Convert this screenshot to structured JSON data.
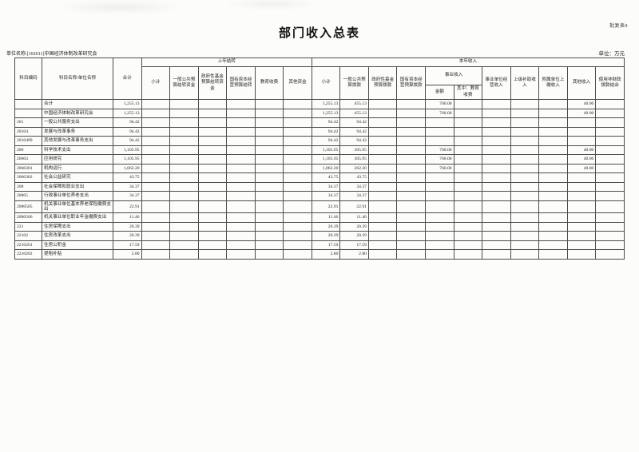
{
  "page": {
    "corner_note": "批复表8",
    "title": "部门收入总表",
    "unit_name": "单位名称:[102011]中国经济体制改革研究会",
    "unit_label": "单位：万元"
  },
  "table": {
    "headers": {
      "code": "科目编码",
      "name": "科目名称/单位名称",
      "total": "合计",
      "prev_year": {
        "group": "上年结转",
        "cols": [
          "小计",
          "一般公共预算结转资金",
          "政府性基金预算结转资金",
          "国有资本经营预算结转",
          "教育收费",
          "其他资金"
        ]
      },
      "current_year": {
        "group": "本年收入",
        "subtotal": "小计",
        "general": "一般公共预算拨款",
        "govfund": "政府性基金预算拨款",
        "statecap": "国有资本经营预算拨款",
        "business": {
          "group": "事业收入",
          "amount": "金额",
          "edu": "其中：教育收费"
        },
        "operating": "事业单位经营收入",
        "superior": "上级补助收入",
        "affiliated": "附属单位上缴收入",
        "other": "其他收入",
        "nonfiscal": "使用非财政拨款结余"
      }
    },
    "col_ids": [
      "total",
      "py-subtotal",
      "py-general",
      "py-govfund",
      "py-statecap",
      "py-edufee",
      "py-other",
      "cy-subtotal",
      "cy-general",
      "cy-govfund",
      "cy-statecap",
      "cy-biz-amount",
      "cy-biz-edufee",
      "cy-operating",
      "cy-superior",
      "cy-affiliated",
      "cy-other",
      "cy-nonfiscal"
    ],
    "rows": [
      {
        "code": "",
        "name": "合计",
        "indent": 1,
        "values": [
          "1,255.13",
          "",
          "",
          "",
          "",
          "",
          "",
          "1,255.13",
          "455.13",
          "",
          "",
          "760.00",
          "",
          "",
          "",
          "",
          "40.00",
          ""
        ]
      },
      {
        "code": "",
        "name": "中国经济体制改革研究会",
        "indent": 0,
        "values": [
          "1,255.13",
          "",
          "",
          "",
          "",
          "",
          "",
          "1,255.13",
          "455.13",
          "",
          "",
          "760.00",
          "",
          "",
          "",
          "",
          "40.00",
          ""
        ]
      },
      {
        "code": "201",
        "name": "一般公共服务支出",
        "indent": 1,
        "values": [
          "94.42",
          "",
          "",
          "",
          "",
          "",
          "",
          "94.42",
          "94.42",
          "",
          "",
          "",
          "",
          "",
          "",
          "",
          "",
          ""
        ]
      },
      {
        "code": "20104",
        "name": "发展与改革事务",
        "indent": 2,
        "values": [
          "94.42",
          "",
          "",
          "",
          "",
          "",
          "",
          "94.42",
          "94.42",
          "",
          "",
          "",
          "",
          "",
          "",
          "",
          "",
          ""
        ]
      },
      {
        "code": "2010499",
        "name": "其他发展与改革事务支出",
        "indent": 0,
        "values": [
          "94.42",
          "",
          "",
          "",
          "",
          "",
          "",
          "94.42",
          "94.42",
          "",
          "",
          "",
          "",
          "",
          "",
          "",
          "",
          ""
        ]
      },
      {
        "code": "206",
        "name": "科学技术支出",
        "indent": 1,
        "values": [
          "1,105.95",
          "",
          "",
          "",
          "",
          "",
          "",
          "1,105.95",
          "305.95",
          "",
          "",
          "760.00",
          "",
          "",
          "",
          "",
          "40.00",
          ""
        ]
      },
      {
        "code": "20603",
        "name": "应用研究",
        "indent": 2,
        "values": [
          "1,105.95",
          "",
          "",
          "",
          "",
          "",
          "",
          "1,105.95",
          "305.95",
          "",
          "",
          "760.00",
          "",
          "",
          "",
          "",
          "40.00",
          ""
        ]
      },
      {
        "code": "2060301",
        "name": "机构运行",
        "indent": 0,
        "values": [
          "1,062.20",
          "",
          "",
          "",
          "",
          "",
          "",
          "1,062.20",
          "262.20",
          "",
          "",
          "760.00",
          "",
          "",
          "",
          "",
          "40.00",
          ""
        ]
      },
      {
        "code": "2060302",
        "name": "社会公益研究",
        "indent": 0,
        "values": [
          "43.75",
          "",
          "",
          "",
          "",
          "",
          "",
          "43.75",
          "43.75",
          "",
          "",
          "",
          "",
          "",
          "",
          "",
          "",
          ""
        ]
      },
      {
        "code": "208",
        "name": "社会保障和就业支出",
        "indent": 1,
        "values": [
          "34.37",
          "",
          "",
          "",
          "",
          "",
          "",
          "34.37",
          "34.37",
          "",
          "",
          "",
          "",
          "",
          "",
          "",
          "",
          ""
        ]
      },
      {
        "code": "20805",
        "name": "行政事业单位养老支出",
        "indent": 2,
        "values": [
          "34.37",
          "",
          "",
          "",
          "",
          "",
          "",
          "34.37",
          "34.37",
          "",
          "",
          "",
          "",
          "",
          "",
          "",
          "",
          ""
        ]
      },
      {
        "code": "2080505",
        "name": "机关事业单位基本养老保险缴费支出",
        "indent": 0,
        "values": [
          "22.91",
          "",
          "",
          "",
          "",
          "",
          "",
          "22.91",
          "22.91",
          "",
          "",
          "",
          "",
          "",
          "",
          "",
          "",
          ""
        ]
      },
      {
        "code": "2080506",
        "name": "机关事业单位职业年金缴费支出",
        "indent": 0,
        "values": [
          "11.46",
          "",
          "",
          "",
          "",
          "",
          "",
          "11.46",
          "11.46",
          "",
          "",
          "",
          "",
          "",
          "",
          "",
          "",
          ""
        ]
      },
      {
        "code": "221",
        "name": "住房保障支出",
        "indent": 1,
        "values": [
          "20.39",
          "",
          "",
          "",
          "",
          "",
          "",
          "20.39",
          "20.39",
          "",
          "",
          "",
          "",
          "",
          "",
          "",
          "",
          ""
        ]
      },
      {
        "code": "22102",
        "name": "住房改革支出",
        "indent": 2,
        "values": [
          "20.39",
          "",
          "",
          "",
          "",
          "",
          "",
          "20.39",
          "20.39",
          "",
          "",
          "",
          "",
          "",
          "",
          "",
          "",
          ""
        ]
      },
      {
        "code": "2210201",
        "name": "住房公积金",
        "indent": 0,
        "values": [
          "17.59",
          "",
          "",
          "",
          "",
          "",
          "",
          "17.59",
          "17.59",
          "",
          "",
          "",
          "",
          "",
          "",
          "",
          "",
          ""
        ]
      },
      {
        "code": "2210202",
        "name": "提租补贴",
        "indent": 0,
        "values": [
          "2.80",
          "",
          "",
          "",
          "",
          "",
          "",
          "2.80",
          "2.80",
          "",
          "",
          "",
          "",
          "",
          "",
          "",
          "",
          ""
        ]
      }
    ]
  }
}
